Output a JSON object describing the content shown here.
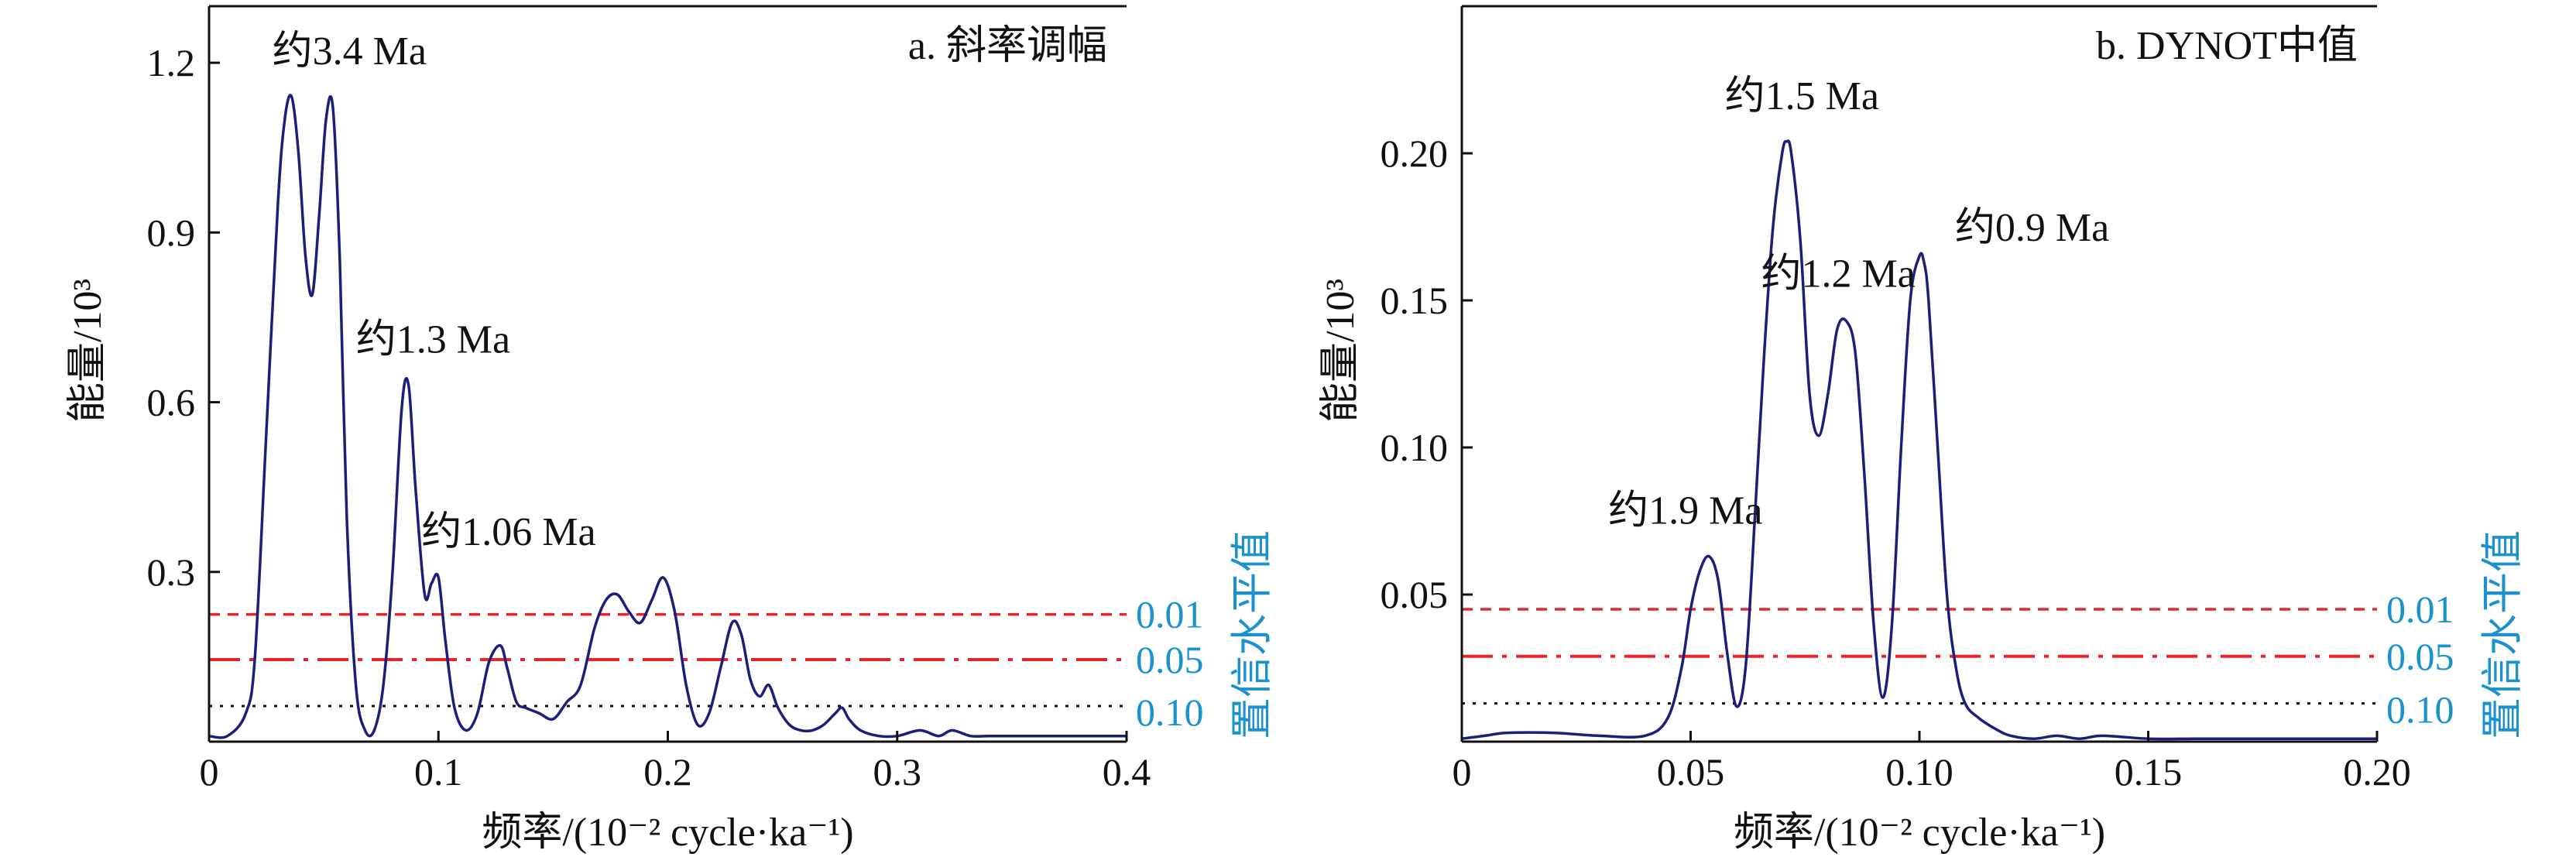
{
  "colors": {
    "spectrum": "#1b1f7a",
    "threshold_red": "#e8252a",
    "threshold_black": "#111111",
    "significance_text": "#1a92d0",
    "axis": "#111111"
  },
  "chart_data": [
    {
      "type": "line",
      "title": "a. 斜率调幅",
      "xlabel": "频率/(10⁻² cycle·ka⁻¹)",
      "ylabel": "能量/10³",
      "xlim": [
        0,
        0.4
      ],
      "ylim": [
        0,
        1.3
      ],
      "xticks": [
        0,
        0.1,
        0.2,
        0.3,
        0.4
      ],
      "xtick_labels": [
        "0",
        "0.1",
        "0.2",
        "0.3",
        "0.4"
      ],
      "yticks": [
        0.3,
        0.6,
        0.9,
        1.2
      ],
      "ytick_labels": [
        "0.3",
        "0.6",
        "0.9",
        "1.2"
      ],
      "series": [
        {
          "x": [
            0.0,
            0.008,
            0.016,
            0.02,
            0.025,
            0.03,
            0.033,
            0.036,
            0.039,
            0.042,
            0.045,
            0.048,
            0.051,
            0.054,
            0.057,
            0.06,
            0.064,
            0.068,
            0.072,
            0.076,
            0.08,
            0.084,
            0.087,
            0.09,
            0.094,
            0.097,
            0.1,
            0.103,
            0.107,
            0.112,
            0.117,
            0.122,
            0.127,
            0.13,
            0.134,
            0.138,
            0.144,
            0.15,
            0.156,
            0.162,
            0.168,
            0.173,
            0.178,
            0.183,
            0.188,
            0.193,
            0.198,
            0.203,
            0.208,
            0.213,
            0.218,
            0.223,
            0.228,
            0.232,
            0.236,
            0.24,
            0.244,
            0.248,
            0.253,
            0.258,
            0.263,
            0.268,
            0.273,
            0.276,
            0.279,
            0.284,
            0.292,
            0.3,
            0.31,
            0.318,
            0.324,
            0.332,
            0.34,
            0.35,
            0.36,
            0.37,
            0.38,
            0.39,
            0.4
          ],
          "values": [
            0.01,
            0.01,
            0.05,
            0.15,
            0.55,
            0.95,
            1.1,
            1.14,
            1.04,
            0.86,
            0.79,
            0.93,
            1.1,
            1.12,
            0.85,
            0.4,
            0.1,
            0.02,
            0.02,
            0.1,
            0.3,
            0.59,
            0.63,
            0.45,
            0.26,
            0.28,
            0.29,
            0.18,
            0.06,
            0.02,
            0.05,
            0.14,
            0.17,
            0.13,
            0.07,
            0.06,
            0.05,
            0.04,
            0.07,
            0.1,
            0.2,
            0.25,
            0.26,
            0.23,
            0.21,
            0.25,
            0.29,
            0.23,
            0.1,
            0.03,
            0.05,
            0.13,
            0.21,
            0.19,
            0.11,
            0.08,
            0.1,
            0.06,
            0.03,
            0.02,
            0.02,
            0.03,
            0.05,
            0.06,
            0.04,
            0.02,
            0.01,
            0.01,
            0.02,
            0.01,
            0.02,
            0.01,
            0.01,
            0.01,
            0.01,
            0.01,
            0.01,
            0.01,
            0.01
          ]
        }
      ],
      "thresholds": [
        {
          "label": "0.01",
          "value": 0.225,
          "style": "dashed",
          "color": "red"
        },
        {
          "label": "0.05",
          "value": 0.145,
          "style": "dashdot",
          "color": "red"
        },
        {
          "label": "0.10",
          "value": 0.063,
          "style": "dotted",
          "color": "black"
        }
      ],
      "significance_axis_label": "置信水平值",
      "annotations": [
        {
          "text": "约3.4 Ma",
          "x": 0.036,
          "y": 1.14
        },
        {
          "text": "约1.3 Ma",
          "x": 0.086,
          "y": 0.63
        },
        {
          "text": "约1.06 Ma",
          "x": 0.1,
          "y": 0.29
        }
      ],
      "grid": false,
      "legend": "none"
    },
    {
      "type": "line",
      "title": "b. DYNOT中值",
      "xlabel": "频率/(10⁻² cycle·ka⁻¹)",
      "ylabel": "能量/10³",
      "xlim": [
        0,
        0.2
      ],
      "ylim": [
        0,
        0.25
      ],
      "xticks": [
        0,
        0.05,
        0.1,
        0.15,
        0.2
      ],
      "xtick_labels": [
        "0",
        "0.05",
        "0.10",
        "0.15",
        "0.20"
      ],
      "yticks": [
        0.05,
        0.1,
        0.15,
        0.2
      ],
      "ytick_labels": [
        "0.05",
        "0.10",
        "0.15",
        "0.20"
      ],
      "series": [
        {
          "x": [
            0.0,
            0.005,
            0.01,
            0.02,
            0.03,
            0.04,
            0.045,
            0.048,
            0.05,
            0.052,
            0.054,
            0.056,
            0.058,
            0.06,
            0.062,
            0.064,
            0.066,
            0.068,
            0.07,
            0.071,
            0.072,
            0.074,
            0.076,
            0.078,
            0.08,
            0.082,
            0.084,
            0.086,
            0.088,
            0.09,
            0.092,
            0.094,
            0.096,
            0.098,
            0.1,
            0.101,
            0.102,
            0.104,
            0.106,
            0.108,
            0.11,
            0.113,
            0.117,
            0.12,
            0.125,
            0.13,
            0.135,
            0.14,
            0.15,
            0.16,
            0.17,
            0.18,
            0.19,
            0.2
          ],
          "values": [
            0.001,
            0.002,
            0.003,
            0.003,
            0.002,
            0.002,
            0.008,
            0.025,
            0.045,
            0.058,
            0.063,
            0.055,
            0.03,
            0.012,
            0.025,
            0.075,
            0.13,
            0.175,
            0.2,
            0.204,
            0.2,
            0.17,
            0.118,
            0.104,
            0.118,
            0.14,
            0.143,
            0.132,
            0.09,
            0.04,
            0.015,
            0.04,
            0.1,
            0.15,
            0.165,
            0.163,
            0.15,
            0.1,
            0.05,
            0.025,
            0.013,
            0.008,
            0.004,
            0.002,
            0.001,
            0.002,
            0.001,
            0.002,
            0.001,
            0.001,
            0.001,
            0.001,
            0.001,
            0.001
          ]
        }
      ],
      "thresholds": [
        {
          "label": "0.01",
          "value": 0.045,
          "style": "dashed",
          "color": "red"
        },
        {
          "label": "0.05",
          "value": 0.029,
          "style": "dashdot",
          "color": "red"
        },
        {
          "label": "0.10",
          "value": 0.013,
          "style": "dotted",
          "color": "black"
        }
      ],
      "significance_axis_label": "置信水平值",
      "annotations": [
        {
          "text": "约1.9 Ma",
          "x": 0.054,
          "y": 0.063
        },
        {
          "text": "约1.5 Ma",
          "x": 0.071,
          "y": 0.204
        },
        {
          "text": "约1.2 Ma",
          "x": 0.084,
          "y": 0.143
        },
        {
          "text": "约0.9 Ma",
          "x": 0.101,
          "y": 0.165
        }
      ],
      "grid": false,
      "legend": "none"
    }
  ]
}
